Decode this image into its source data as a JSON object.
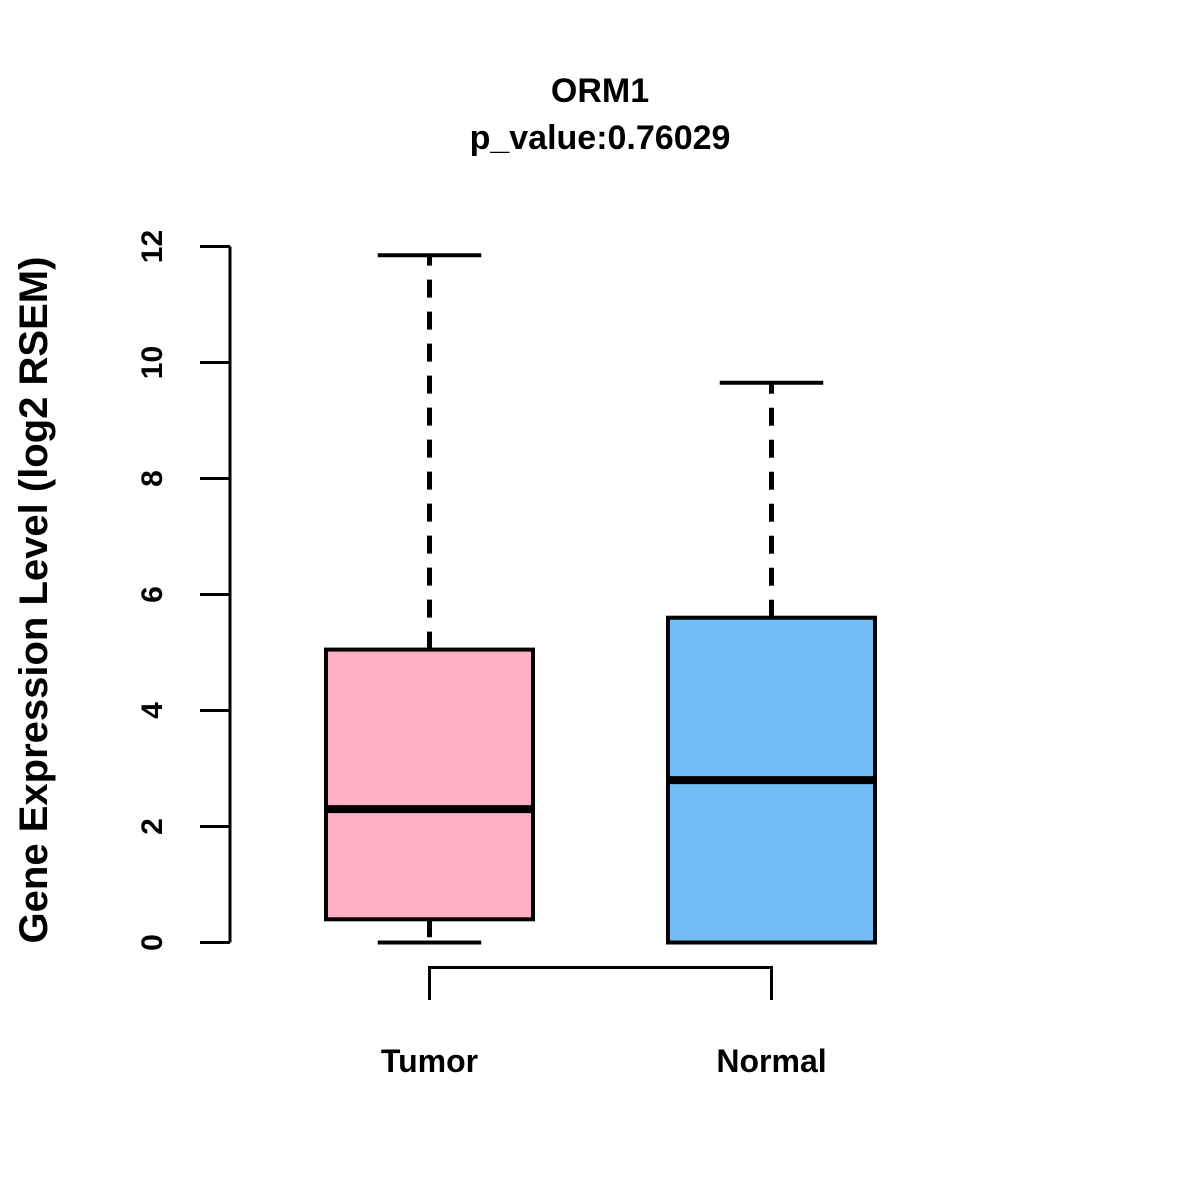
{
  "figure": {
    "title": "ORM1",
    "subtitle": "p_value:0.76029"
  },
  "chart_data": {
    "type": "box",
    "title": "ORM1",
    "subtitle": "p_value:0.76029",
    "gene": "ORM1",
    "p_value": 0.76029,
    "xlabel": "",
    "ylabel": "Gene Expression Level (log2 RSEM)",
    "ylim": [
      0,
      12
    ],
    "yticks": [
      0,
      2,
      4,
      6,
      8,
      10,
      12
    ],
    "grid": false,
    "legend": "none",
    "categories": [
      "Tumor",
      "Normal"
    ],
    "series": [
      {
        "name": "Tumor",
        "color": "#FFB0C4",
        "whisker_low": 0.0,
        "q1": 0.4,
        "median": 2.3,
        "q3": 5.05,
        "whisker_high": 11.85
      },
      {
        "name": "Normal",
        "color": "#74BEF8",
        "whisker_low": 0.0,
        "q1": 0.0,
        "median": 2.8,
        "q3": 5.6,
        "whisker_high": 9.65
      }
    ],
    "annotations": {
      "comparison_bracket_between": [
        "Tumor",
        "Normal"
      ]
    },
    "colors": {
      "axis": "#000000",
      "box_border": "#000000",
      "tumor_fill": "#FFB0C4",
      "normal_fill": "#74BEF8"
    }
  }
}
